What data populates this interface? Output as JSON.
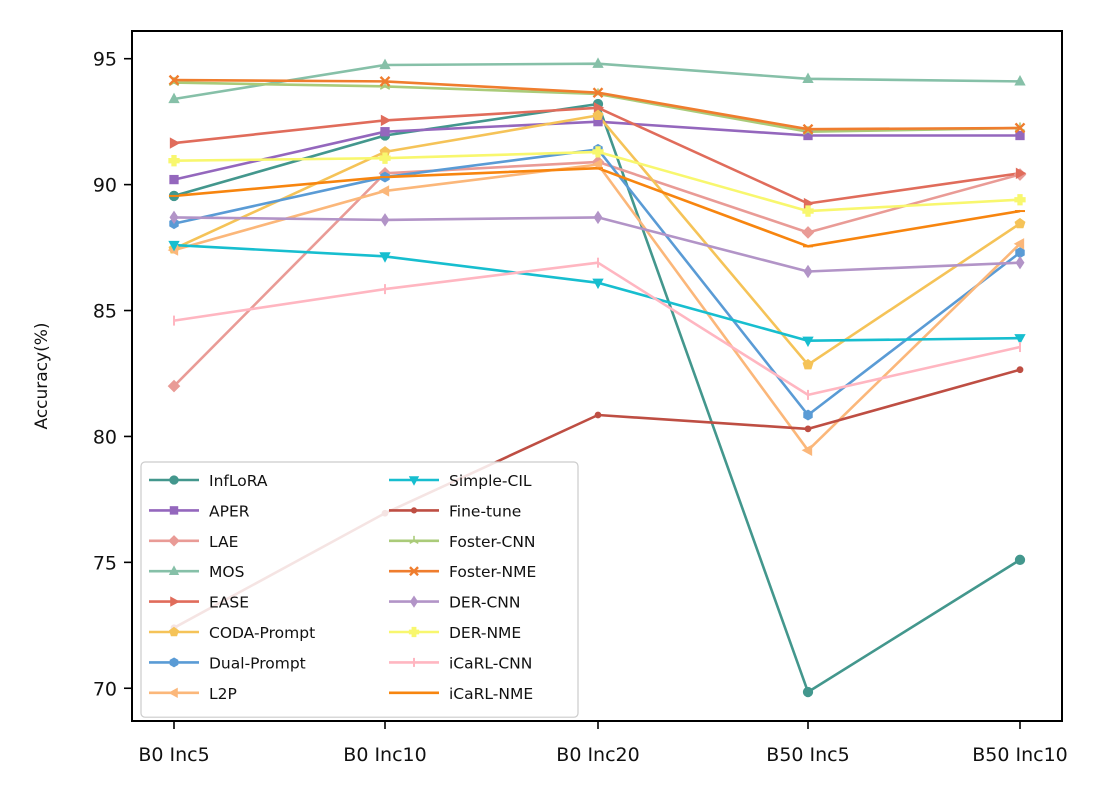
{
  "chart_data": {
    "type": "line",
    "title": "",
    "xlabel": "",
    "ylabel": "Accuracy(%)",
    "categories": [
      "B0 Inc5",
      "B0 Inc10",
      "B0 Inc20",
      "B50 Inc5",
      "B50 Inc10"
    ],
    "ylim": [
      68.7,
      96.1
    ],
    "yticks": [
      70,
      75,
      80,
      85,
      90,
      95
    ],
    "grid": false,
    "legend_position": "lower-left",
    "legend_columns": 2,
    "series": [
      {
        "name": "InfLoRA",
        "color": "#43978d",
        "marker": "circle",
        "values": [
          89.55,
          91.95,
          93.2,
          69.85,
          75.1
        ]
      },
      {
        "name": "APER",
        "color": "#9467bd",
        "marker": "square",
        "values": [
          90.2,
          92.1,
          92.5,
          91.95,
          91.95
        ]
      },
      {
        "name": "LAE",
        "color": "#e99b96",
        "marker": "diamond",
        "values": [
          82.0,
          90.45,
          90.9,
          88.1,
          90.4
        ]
      },
      {
        "name": "MOS",
        "color": "#86c0a8",
        "marker": "triangle-up",
        "values": [
          93.4,
          94.75,
          94.8,
          94.2,
          94.1
        ]
      },
      {
        "name": "EASE",
        "color": "#e06c5b",
        "marker": "triangle-right",
        "values": [
          91.65,
          92.55,
          93.05,
          89.25,
          90.45
        ]
      },
      {
        "name": "CODA-Prompt",
        "color": "#f5c358",
        "marker": "pentagon",
        "values": [
          87.45,
          91.3,
          92.75,
          82.85,
          88.45
        ]
      },
      {
        "name": "Dual-Prompt",
        "color": "#5a9bd5",
        "marker": "hexagon",
        "values": [
          88.45,
          90.3,
          91.4,
          80.85,
          87.3
        ]
      },
      {
        "name": "L2P",
        "color": "#fbb77a",
        "marker": "triangle-left",
        "values": [
          87.4,
          89.75,
          90.8,
          79.45,
          87.65
        ]
      },
      {
        "name": "Simple-CIL",
        "color": "#17becf",
        "marker": "triangle-down",
        "values": [
          87.6,
          87.15,
          86.1,
          83.8,
          83.9
        ]
      },
      {
        "name": "Fine-tune",
        "color": "#be4e43",
        "marker": "point",
        "values": [
          72.4,
          76.95,
          80.85,
          80.3,
          82.65
        ]
      },
      {
        "name": "Foster-CNN",
        "color": "#aacb79",
        "marker": "tri",
        "values": [
          94.05,
          93.9,
          93.6,
          92.1,
          92.25
        ]
      },
      {
        "name": "Foster-NME",
        "color": "#ef7d2e",
        "marker": "x",
        "values": [
          94.15,
          94.1,
          93.65,
          92.2,
          92.25
        ]
      },
      {
        "name": "DER-CNN",
        "color": "#b294c7",
        "marker": "thin-diamond",
        "values": [
          88.7,
          88.6,
          88.7,
          86.55,
          86.9
        ]
      },
      {
        "name": "DER-NME",
        "color": "#f8f76e",
        "marker": "plus-filled",
        "values": [
          90.95,
          91.05,
          91.3,
          88.95,
          89.4
        ]
      },
      {
        "name": "iCaRL-CNN",
        "color": "#ffb6c1",
        "marker": "vline",
        "values": [
          84.6,
          85.85,
          86.9,
          81.65,
          83.55
        ]
      },
      {
        "name": "iCaRL-NME",
        "color": "#f7850f",
        "marker": "hline",
        "values": [
          89.55,
          90.3,
          90.65,
          87.55,
          88.95
        ]
      }
    ]
  }
}
